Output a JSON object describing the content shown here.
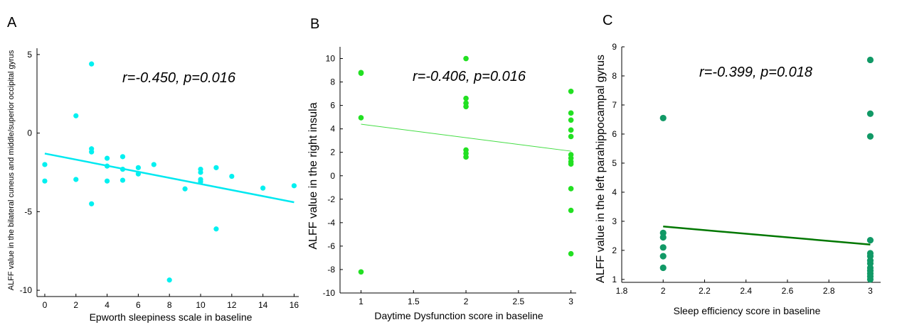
{
  "chart_data": [
    {
      "panel": "A",
      "type": "scatter",
      "annotation": "r=-0.450, p=0.016",
      "xlabel": "Epworth sleepiness scale in baseline",
      "ylabel": "ALFF value in the bilateral cuneus and middle/superior occipital gyrus",
      "xlim": [
        -0.5,
        16.3
      ],
      "ylim": [
        -10.4,
        5.4
      ],
      "xticks": [
        0,
        2,
        4,
        6,
        8,
        10,
        12,
        14,
        16
      ],
      "yticks": [
        5,
        0,
        -5,
        -10
      ],
      "point_color": "#00f0f0",
      "line_color": "#00e8f0",
      "points": [
        {
          "x": 0,
          "y": -2.0
        },
        {
          "x": 0,
          "y": -3.05
        },
        {
          "x": 2,
          "y": 1.1
        },
        {
          "x": 2,
          "y": -2.95
        },
        {
          "x": 3,
          "y": 4.4
        },
        {
          "x": 3,
          "y": -1.0
        },
        {
          "x": 3,
          "y": -1.2
        },
        {
          "x": 3,
          "y": -4.5
        },
        {
          "x": 4,
          "y": -1.6
        },
        {
          "x": 4,
          "y": -2.1
        },
        {
          "x": 4,
          "y": -3.05
        },
        {
          "x": 5,
          "y": -1.5
        },
        {
          "x": 5,
          "y": -2.3
        },
        {
          "x": 5,
          "y": -3.0
        },
        {
          "x": 6,
          "y": -2.2
        },
        {
          "x": 6,
          "y": -2.6
        },
        {
          "x": 7,
          "y": -2.0
        },
        {
          "x": 8,
          "y": -9.35
        },
        {
          "x": 9,
          "y": -3.55
        },
        {
          "x": 10,
          "y": -2.3
        },
        {
          "x": 10,
          "y": -2.5
        },
        {
          "x": 10,
          "y": -2.95
        },
        {
          "x": 10,
          "y": -3.1
        },
        {
          "x": 11,
          "y": -2.2
        },
        {
          "x": 11,
          "y": -6.1
        },
        {
          "x": 12,
          "y": -2.75
        },
        {
          "x": 14,
          "y": -3.5
        },
        {
          "x": 16,
          "y": -3.35
        }
      ],
      "fit_line": {
        "x": [
          0,
          16
        ],
        "y": [
          -1.3,
          -4.4
        ]
      }
    },
    {
      "panel": "B",
      "type": "scatter",
      "annotation": "r=-0.406, p=0.016",
      "xlabel": "Daytime Dysfunction score in baseline",
      "ylabel": "ALFF value in the right insula",
      "xlim": [
        0.8,
        3.05
      ],
      "ylim": [
        -10,
        11
      ],
      "xticks": [
        1,
        1.5,
        2,
        2.5,
        3
      ],
      "yticks": [
        10,
        8,
        6,
        4,
        2,
        0,
        -2,
        -4,
        -6,
        -8,
        -10
      ],
      "point_color": "#22e022",
      "line_color": "#44dd44",
      "points": [
        {
          "x": 1,
          "y": 8.8
        },
        {
          "x": 1,
          "y": 8.75
        },
        {
          "x": 1,
          "y": 4.95
        },
        {
          "x": 1,
          "y": -8.2
        },
        {
          "x": 2,
          "y": 10.0
        },
        {
          "x": 2,
          "y": 6.6
        },
        {
          "x": 2,
          "y": 6.2
        },
        {
          "x": 2,
          "y": 5.9
        },
        {
          "x": 2,
          "y": 2.2
        },
        {
          "x": 2,
          "y": 1.9
        },
        {
          "x": 2,
          "y": 1.6
        },
        {
          "x": 3,
          "y": 7.2
        },
        {
          "x": 3,
          "y": 5.35
        },
        {
          "x": 3,
          "y": 4.75
        },
        {
          "x": 3,
          "y": 3.9
        },
        {
          "x": 3,
          "y": 3.35
        },
        {
          "x": 3,
          "y": 1.8
        },
        {
          "x": 3,
          "y": 1.5
        },
        {
          "x": 3,
          "y": 1.2
        },
        {
          "x": 3,
          "y": 1.0
        },
        {
          "x": 3,
          "y": -1.1
        },
        {
          "x": 3,
          "y": -2.95
        },
        {
          "x": 3,
          "y": -6.65
        }
      ],
      "fit_line": {
        "x": [
          1,
          3
        ],
        "y": [
          4.4,
          2.1
        ]
      }
    },
    {
      "panel": "C",
      "type": "scatter",
      "annotation": "r=-0.399, p=0.018",
      "xlabel": "Sleep efficiency score in baseline",
      "ylabel": "ALFF value in the left parahippocampal gyrus",
      "xlim": [
        1.8,
        3.05
      ],
      "ylim": [
        0.9,
        9.0
      ],
      "xticks": [
        1.8,
        2,
        2.2,
        2.4,
        2.6,
        2.8,
        3
      ],
      "xtick_labels": [
        "1.8",
        "2",
        "2.2",
        "2.4",
        "2.6",
        "2.8",
        "3"
      ],
      "yticks": [
        1,
        2,
        3,
        4,
        5,
        6,
        7,
        8,
        9
      ],
      "point_color": "#119966",
      "line_color": "#007700",
      "points": [
        {
          "x": 2,
          "y": 6.55
        },
        {
          "x": 2,
          "y": 2.6
        },
        {
          "x": 2,
          "y": 2.45
        },
        {
          "x": 2,
          "y": 2.1
        },
        {
          "x": 2,
          "y": 1.8
        },
        {
          "x": 2,
          "y": 1.4
        },
        {
          "x": 3,
          "y": 8.55
        },
        {
          "x": 3,
          "y": 6.7
        },
        {
          "x": 3,
          "y": 5.92
        },
        {
          "x": 3,
          "y": 2.35
        },
        {
          "x": 3,
          "y": 1.9
        },
        {
          "x": 3,
          "y": 1.8
        },
        {
          "x": 3,
          "y": 1.65
        },
        {
          "x": 3,
          "y": 1.55
        },
        {
          "x": 3,
          "y": 1.4
        },
        {
          "x": 3,
          "y": 1.3
        },
        {
          "x": 3,
          "y": 1.2
        },
        {
          "x": 3,
          "y": 1.1
        },
        {
          "x": 3,
          "y": 1.0
        }
      ],
      "fit_line": {
        "x": [
          2,
          3
        ],
        "y": [
          2.82,
          2.2
        ]
      }
    }
  ]
}
